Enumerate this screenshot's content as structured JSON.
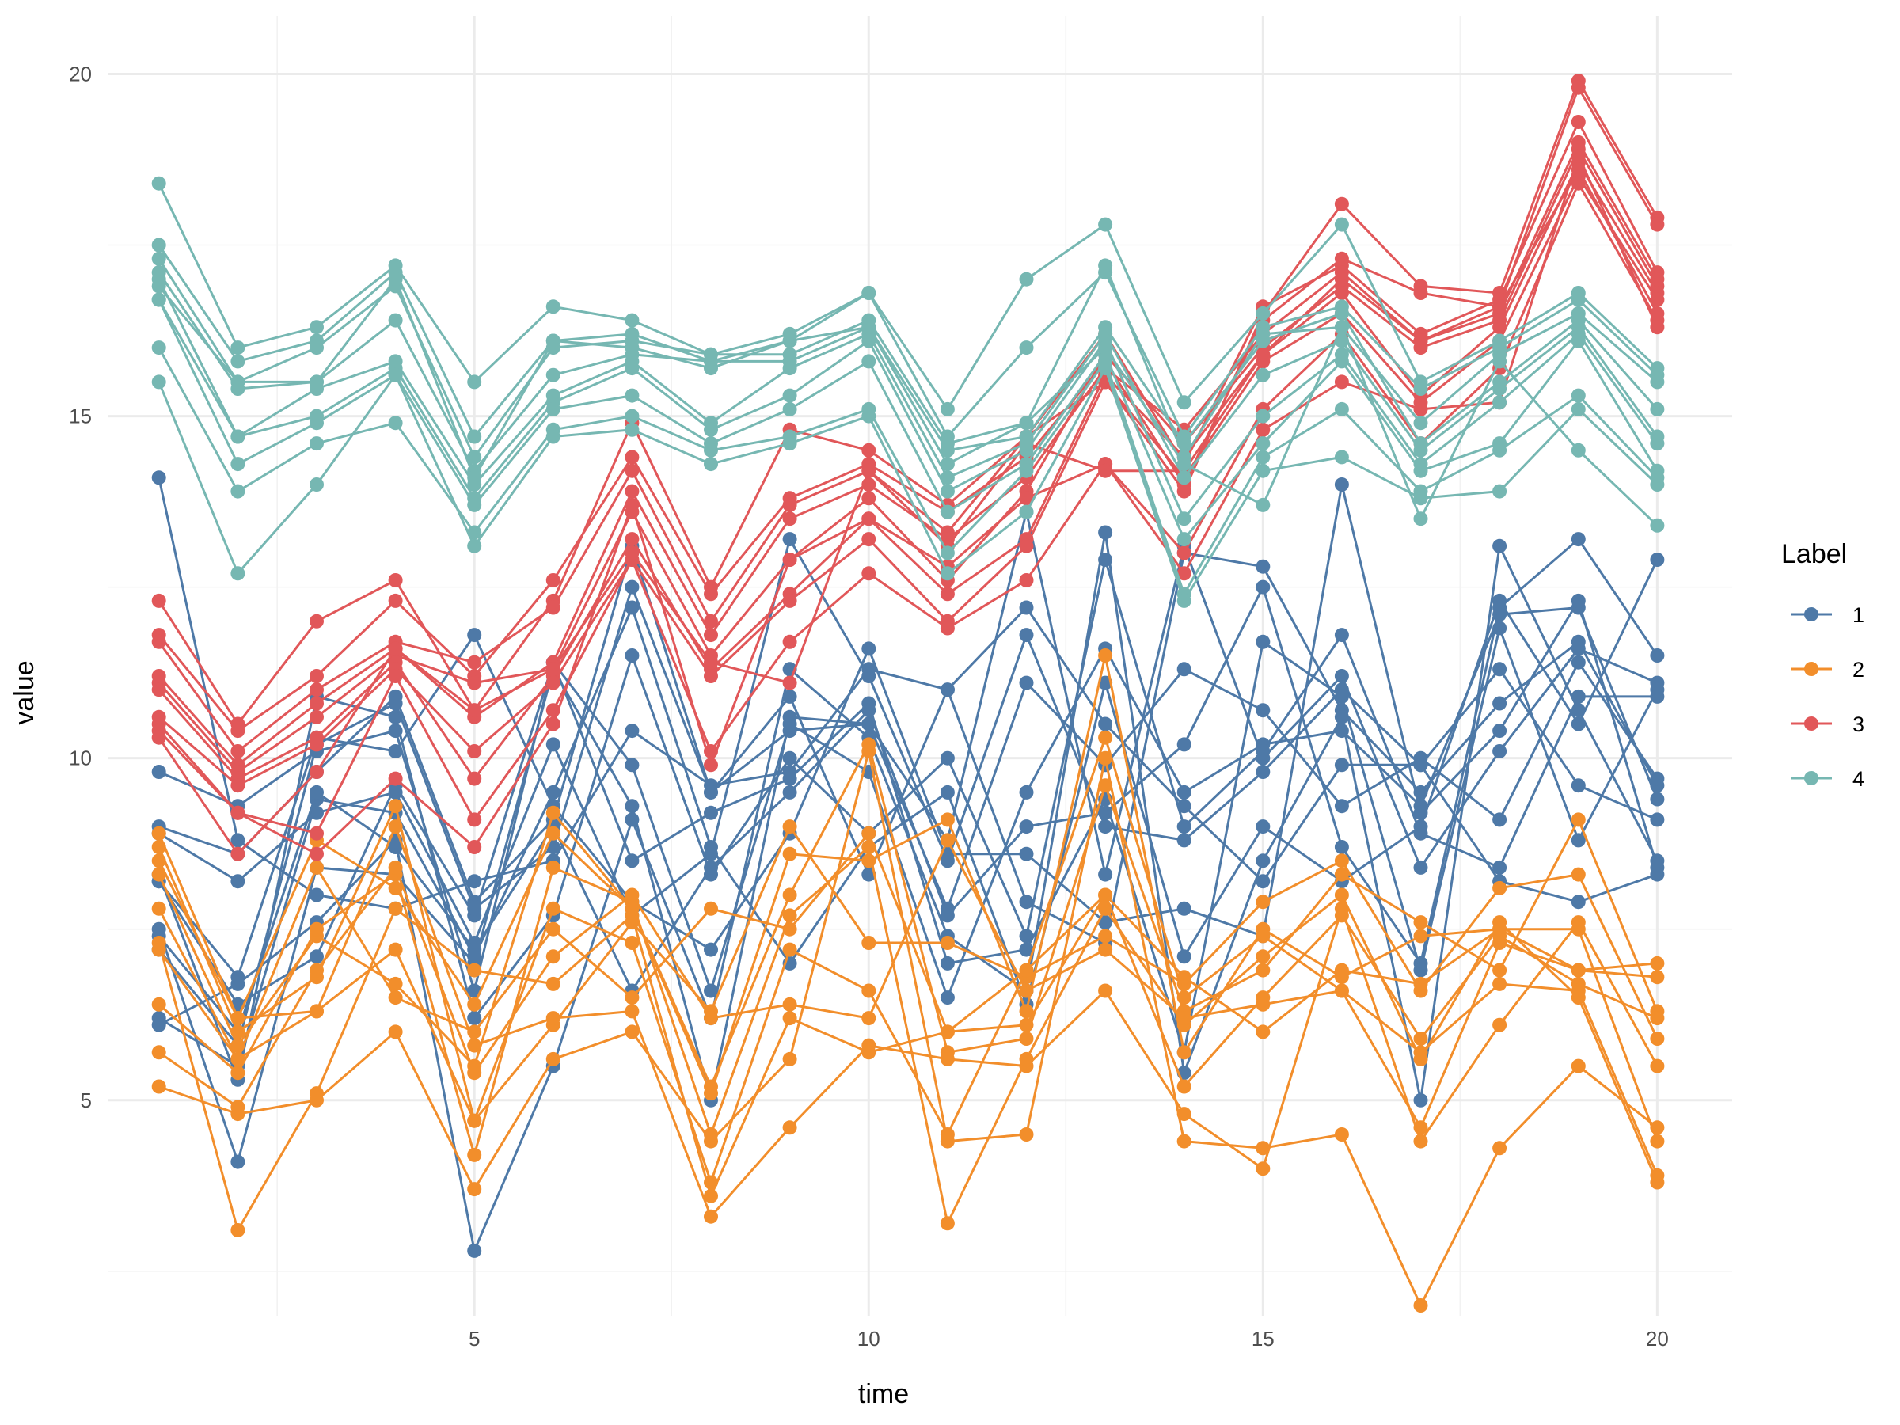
{
  "chart_data": {
    "type": "line",
    "title": "",
    "xlabel": "time",
    "ylabel": "value",
    "xlim": [
      0.35,
      20.95
    ],
    "ylim": [
      1.85,
      20.85
    ],
    "x_ticks": [
      5,
      10,
      15,
      20
    ],
    "y_ticks": [
      5,
      10,
      15,
      20
    ],
    "x_tick_labels": [
      "5",
      "10",
      "15",
      "20"
    ],
    "y_tick_labels": [
      "5",
      "10",
      "15",
      "20"
    ],
    "grid": true,
    "legend": {
      "title": "Label",
      "placement": "right",
      "entries": [
        {
          "label": "1",
          "color": "#4E79A7"
        },
        {
          "label": "2",
          "color": "#F28E2B"
        },
        {
          "label": "3",
          "color": "#E15759"
        },
        {
          "label": "4",
          "color": "#76B7B2"
        }
      ]
    },
    "x": [
      1,
      2,
      3,
      4,
      5,
      6,
      7,
      8,
      9,
      10,
      11,
      12,
      13,
      14,
      15,
      16,
      17,
      18,
      19,
      20
    ],
    "groups": [
      {
        "label": "1",
        "color": "#4E79A7",
        "series": [
          [
            14.1,
            8.8,
            8.0,
            7.8,
            8.2,
            8.5,
            10.4,
            9.6,
            9.8,
            11.3,
            11.0,
            7.9,
            7.3,
            13.0,
            12.8,
            10.7,
            9.5,
            10.8,
            11.7,
            9.6
          ],
          [
            9.8,
            9.3,
            10.1,
            10.4,
            6.6,
            11.4,
            9.9,
            6.6,
            10.5,
            9.8,
            6.5,
            9.5,
            11.6,
            9.5,
            10.2,
            10.4,
            9.3,
            12.1,
            12.2,
            9.4
          ],
          [
            9.0,
            8.6,
            9.8,
            10.9,
            7.9,
            9.1,
            13.1,
            9.5,
            10.4,
            10.5,
            8.8,
            13.6,
            8.3,
            13.1,
            10.0,
            11.2,
            8.4,
            10.1,
            11.6,
            11.1
          ],
          [
            8.9,
            8.2,
            9.2,
            9.5,
            7.3,
            10.2,
            7.7,
            8.6,
            13.2,
            11.2,
            8.5,
            11.8,
            9.0,
            8.8,
            9.8,
            11.0,
            9.9,
            11.3,
            9.6,
            9.1
          ],
          [
            8.2,
            6.8,
            10.3,
            10.1,
            11.8,
            9.3,
            7.9,
            7.2,
            8.9,
            11.6,
            8.6,
            8.6,
            7.6,
            7.8,
            7.4,
            14.0,
            9.2,
            10.4,
            12.3,
            8.4
          ],
          [
            7.5,
            4.1,
            8.4,
            8.3,
            7.0,
            11.3,
            9.3,
            5.0,
            10.6,
            10.5,
            7.8,
            11.1,
            9.9,
            11.3,
            10.7,
            9.3,
            10.0,
            9.1,
            11.4,
            9.7
          ],
          [
            8.3,
            5.3,
            10.9,
            10.6,
            6.2,
            7.7,
            11.5,
            8.3,
            10.0,
            8.9,
            10.0,
            7.4,
            12.9,
            9.0,
            10.1,
            11.8,
            8.9,
            8.4,
            10.9,
            10.9
          ],
          [
            6.2,
            5.5,
            9.4,
            9.2,
            7.1,
            9.5,
            12.2,
            8.7,
            7.0,
            8.7,
            9.5,
            6.4,
            11.1,
            7.1,
            9.0,
            8.2,
            9.0,
            12.3,
            10.5,
            12.9
          ],
          [
            6.1,
            6.7,
            7.6,
            8.8,
            2.8,
            5.5,
            9.1,
            6.2,
            11.3,
            10.3,
            7.4,
            6.6,
            13.3,
            5.4,
            8.5,
            10.6,
            5.0,
            13.1,
            10.7,
            8.5
          ],
          [
            7.4,
            6.0,
            9.5,
            8.7,
            7.2,
            9.0,
            6.6,
            8.4,
            9.5,
            10.7,
            7.7,
            9.0,
            9.2,
            10.2,
            12.5,
            8.7,
            7.0,
            12.2,
            13.2,
            11.5
          ],
          [
            8.2,
            6.4,
            7.1,
            9.6,
            7.7,
            11.4,
            8.5,
            9.2,
            9.7,
            10.8,
            7.0,
            7.2,
            9.4,
            5.7,
            11.7,
            10.9,
            6.9,
            11.9,
            8.8,
            11.0
          ],
          [
            7.2,
            5.8,
            10.2,
            10.8,
            7.8,
            8.7,
            12.5,
            9.5,
            10.9,
            8.3,
            11.0,
            12.2,
            10.5,
            9.3,
            8.2,
            9.9,
            9.9,
            8.2,
            7.9,
            8.3
          ]
        ]
      },
      {
        "label": "2",
        "color": "#F28E2B",
        "series": [
          [
            8.5,
            6.2,
            8.8,
            8.1,
            6.4,
            8.9,
            7.8,
            5.1,
            8.6,
            8.5,
            9.1,
            6.3,
            11.5,
            5.7,
            7.5,
            6.8,
            7.4,
            7.5,
            6.9,
            7.0
          ],
          [
            8.9,
            6.2,
            6.3,
            7.2,
            4.7,
            6.1,
            7.6,
            6.3,
            9.0,
            7.3,
            7.3,
            6.8,
            7.4,
            6.7,
            7.9,
            8.5,
            6.6,
            8.1,
            8.3,
            5.9
          ],
          [
            8.3,
            5.8,
            7.4,
            6.7,
            5.5,
            9.2,
            7.8,
            5.2,
            8.0,
            10.2,
            5.7,
            5.9,
            9.6,
            6.3,
            6.9,
            8.3,
            7.6,
            6.9,
            9.1,
            6.3
          ],
          [
            8.7,
            6.0,
            6.8,
            9.3,
            4.7,
            7.8,
            7.3,
            3.8,
            7.2,
            6.6,
            4.5,
            6.9,
            10.3,
            6.5,
            7.4,
            6.6,
            4.6,
            7.3,
            6.9,
            6.8
          ],
          [
            5.2,
            4.8,
            5.0,
            6.0,
            3.7,
            5.6,
            6.0,
            4.4,
            5.6,
            10.1,
            4.4,
            4.5,
            10.0,
            4.4,
            4.3,
            4.5,
            2.0,
            4.3,
            5.5,
            4.6
          ],
          [
            7.8,
            5.6,
            6.3,
            9.0,
            5.8,
            6.2,
            6.3,
            3.3,
            4.6,
            5.8,
            5.6,
            5.5,
            6.6,
            4.8,
            4.0,
            7.8,
            4.4,
            6.1,
            7.6,
            5.5
          ],
          [
            7.3,
            3.1,
            5.1,
            7.8,
            6.9,
            6.7,
            7.7,
            3.6,
            6.2,
            5.7,
            6.0,
            6.1,
            8.0,
            5.2,
            6.5,
            7.7,
            5.9,
            7.4,
            6.7,
            6.2
          ],
          [
            6.4,
            5.4,
            7.5,
            8.3,
            4.2,
            8.4,
            7.9,
            4.5,
            7.7,
            8.7,
            3.2,
            5.6,
            7.8,
            6.1,
            7.1,
            8.0,
            5.6,
            7.6,
            6.5,
            3.8
          ],
          [
            5.7,
            4.9,
            6.9,
            8.4,
            5.4,
            7.1,
            8.0,
            6.2,
            6.4,
            6.2,
            8.8,
            6.6,
            7.2,
            6.2,
            6.4,
            6.6,
            5.7,
            6.7,
            6.6,
            3.9
          ],
          [
            7.2,
            5.6,
            8.4,
            6.5,
            6.0,
            7.5,
            6.5,
            7.8,
            7.5,
            8.9,
            6.0,
            6.9,
            8.0,
            6.8,
            6.0,
            6.9,
            6.7,
            7.5,
            7.5,
            4.4
          ]
        ]
      },
      {
        "label": "3",
        "color": "#E15759",
        "series": [
          [
            12.3,
            10.5,
            12.0,
            12.6,
            10.7,
            12.3,
            14.9,
            12.5,
            14.8,
            14.5,
            13.7,
            14.7,
            15.5,
            13.9,
            16.5,
            18.1,
            16.9,
            16.8,
            19.9,
            17.9
          ],
          [
            11.8,
            10.4,
            11.2,
            12.3,
            11.2,
            12.6,
            14.4,
            12.4,
            13.8,
            14.3,
            13.6,
            14.4,
            15.8,
            14.0,
            16.4,
            17.3,
            16.8,
            16.6,
            19.8,
            17.8
          ],
          [
            11.7,
            10.1,
            11.0,
            11.7,
            11.4,
            12.2,
            14.2,
            12.0,
            13.7,
            14.2,
            13.3,
            14.7,
            16.2,
            14.3,
            16.6,
            17.2,
            16.2,
            16.7,
            19.3,
            17.1
          ],
          [
            11.2,
            9.9,
            10.8,
            11.6,
            10.6,
            11.4,
            13.9,
            11.8,
            13.5,
            14.0,
            13.2,
            14.1,
            15.7,
            14.8,
            16.2,
            17.1,
            16.1,
            16.5,
            19.0,
            17.0
          ],
          [
            11.1,
            9.8,
            10.6,
            11.5,
            11.1,
            11.3,
            13.6,
            11.5,
            12.9,
            13.8,
            12.6,
            13.9,
            15.9,
            14.6,
            16.0,
            16.9,
            16.0,
            16.4,
            18.9,
            16.9
          ],
          [
            11.0,
            9.7,
            10.3,
            11.4,
            9.7,
            11.2,
            13.2,
            11.3,
            12.4,
            13.5,
            12.4,
            13.2,
            15.6,
            14.4,
            15.9,
            16.8,
            15.3,
            16.3,
            18.7,
            16.8
          ],
          [
            10.6,
            9.6,
            10.2,
            11.3,
            10.1,
            11.1,
            12.9,
            11.2,
            12.3,
            13.2,
            12.0,
            13.1,
            15.5,
            14.1,
            15.8,
            16.5,
            15.2,
            16.1,
            18.5,
            16.7
          ],
          [
            10.5,
            9.2,
            8.9,
            11.2,
            9.1,
            10.7,
            12.9,
            10.1,
            11.7,
            12.7,
            11.9,
            12.6,
            14.3,
            13.0,
            15.1,
            16.2,
            14.6,
            15.7,
            18.4,
            16.4
          ],
          [
            10.4,
            9.2,
            8.6,
            9.7,
            8.7,
            10.5,
            13.7,
            9.9,
            12.9,
            13.5,
            12.8,
            13.8,
            14.3,
            12.7,
            14.8,
            15.5,
            15.1,
            15.2,
            18.8,
            16.3
          ],
          [
            10.3,
            8.6,
            9.8,
            11.6,
            10.7,
            11.3,
            13.0,
            11.4,
            11.1,
            14.2,
            13.1,
            14.6,
            14.2,
            14.2,
            15.9,
            17.0,
            16.1,
            16.6,
            18.6,
            16.5
          ]
        ]
      },
      {
        "label": "4",
        "color": "#76B7B2",
        "series": [
          [
            18.4,
            16.0,
            16.3,
            17.2,
            15.5,
            16.6,
            16.4,
            15.9,
            16.2,
            16.8,
            15.1,
            17.0,
            17.8,
            15.2,
            16.5,
            17.8,
            15.5,
            16.1,
            16.8,
            15.7
          ],
          [
            17.5,
            15.8,
            16.1,
            17.1,
            14.7,
            16.1,
            16.2,
            15.8,
            16.1,
            16.8,
            14.7,
            16.0,
            17.1,
            14.7,
            16.3,
            16.6,
            15.4,
            16.0,
            16.7,
            15.6
          ],
          [
            17.3,
            15.5,
            16.0,
            16.9,
            14.4,
            16.0,
            16.1,
            15.9,
            15.9,
            16.4,
            14.6,
            14.9,
            17.2,
            14.4,
            16.2,
            16.3,
            14.9,
            15.9,
            16.5,
            15.5
          ],
          [
            17.1,
            15.4,
            15.5,
            16.4,
            14.2,
            15.6,
            15.9,
            15.8,
            15.8,
            16.3,
            14.5,
            14.7,
            16.3,
            14.6,
            16.1,
            16.5,
            14.6,
            15.5,
            16.4,
            15.1
          ],
          [
            17.0,
            14.7,
            15.4,
            15.8,
            14.0,
            15.3,
            15.8,
            14.9,
            15.7,
            16.2,
            14.1,
            14.6,
            16.2,
            14.1,
            15.6,
            16.1,
            14.5,
            15.4,
            16.3,
            14.7
          ],
          [
            16.7,
            14.7,
            15.0,
            15.7,
            13.8,
            15.2,
            15.7,
            14.8,
            15.3,
            16.1,
            13.9,
            14.5,
            16.1,
            13.5,
            15.0,
            15.9,
            14.3,
            15.2,
            16.2,
            14.6
          ],
          [
            16.7,
            14.3,
            14.9,
            15.6,
            13.7,
            15.1,
            15.3,
            14.6,
            15.1,
            15.8,
            13.6,
            14.3,
            15.9,
            13.2,
            14.6,
            15.8,
            14.2,
            14.6,
            16.1,
            14.2
          ],
          [
            16.0,
            13.9,
            14.6,
            14.9,
            13.3,
            14.8,
            15.0,
            14.5,
            14.7,
            15.1,
            13.0,
            14.2,
            15.8,
            12.4,
            14.4,
            15.1,
            13.9,
            14.5,
            15.3,
            14.1
          ],
          [
            15.5,
            12.7,
            14.0,
            15.6,
            13.1,
            14.7,
            14.8,
            14.3,
            14.6,
            15.0,
            12.7,
            13.6,
            15.7,
            12.3,
            14.2,
            14.4,
            13.8,
            13.9,
            15.1,
            14.0
          ],
          [
            16.9,
            15.5,
            15.5,
            17.0,
            14.1,
            16.1,
            16.0,
            15.7,
            16.1,
            16.3,
            14.3,
            14.9,
            16.0,
            14.3,
            13.7,
            16.3,
            13.5,
            15.8,
            14.5,
            13.4
          ]
        ]
      }
    ]
  }
}
